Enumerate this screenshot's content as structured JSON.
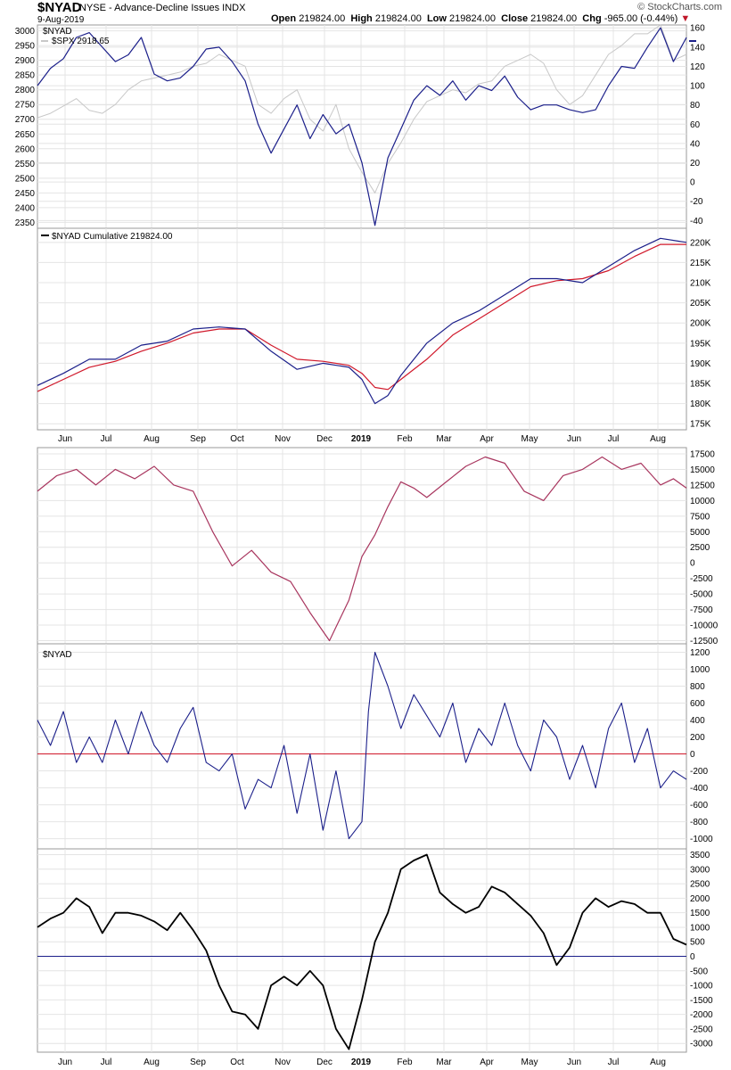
{
  "header": {
    "symbol": "$NYAD",
    "subtitle": "NYSE - Advance-Decline Issues  INDX",
    "date": "9-Aug-2019",
    "open_label": "Open",
    "open": "219824.00",
    "high_label": "High",
    "high": "219824.00",
    "low_label": "Low",
    "low": "219824.00",
    "close_label": "Close",
    "close": "219824.00",
    "chg_label": "Chg",
    "chg": "-965.00 (-0.44%)",
    "brand": "© StockCharts.com"
  },
  "colors": {
    "navy": "#1b1f8a",
    "gray": "#c8c8c8",
    "red": "#d0182a",
    "maroon": "#a8355e",
    "black": "#000000",
    "grid": "#e4e4e4"
  },
  "x_axis_labels": [
    "Jun",
    "Jul",
    "Aug",
    "Sep",
    "Oct",
    "Nov",
    "Dec",
    "2019",
    "Feb",
    "Mar",
    "Apr",
    "May",
    "Jun",
    "Jul",
    "Aug"
  ],
  "chart_data": [
    {
      "type": "line",
      "panel": "1",
      "legend": [
        "$NYAD",
        "$SPX 2918.65"
      ],
      "y_left_ticks": [
        3000,
        2950,
        2900,
        2850,
        2800,
        2750,
        2700,
        2650,
        2600,
        2550,
        2500,
        2450,
        2400,
        2350
      ],
      "y_right_ticks": [
        160,
        140,
        120,
        100,
        80,
        60,
        40,
        20,
        0,
        -20,
        -40
      ],
      "y_left_range": [
        2330,
        3020
      ],
      "y_right_range": [
        -48,
        163
      ],
      "series": [
        {
          "name": "$NYAD",
          "axis": "right",
          "x": [
            0,
            0.02,
            0.04,
            0.06,
            0.08,
            0.1,
            0.12,
            0.14,
            0.16,
            0.18,
            0.2,
            0.22,
            0.24,
            0.26,
            0.28,
            0.3,
            0.32,
            0.34,
            0.36,
            0.38,
            0.4,
            0.42,
            0.44,
            0.46,
            0.48,
            0.5,
            0.52,
            0.54,
            0.56,
            0.58,
            0.6,
            0.62,
            0.64,
            0.66,
            0.68,
            0.7,
            0.72,
            0.74,
            0.76,
            0.78,
            0.8,
            0.82,
            0.84,
            0.86,
            0.88,
            0.9,
            0.92,
            0.94,
            0.96,
            0.98,
            1
          ],
          "values": [
            100,
            118,
            128,
            150,
            155,
            140,
            125,
            132,
            150,
            112,
            105,
            108,
            120,
            138,
            140,
            125,
            105,
            60,
            30,
            55,
            80,
            45,
            70,
            50,
            60,
            20,
            -45,
            25,
            55,
            85,
            100,
            90,
            105,
            85,
            100,
            95,
            110,
            88,
            75,
            80,
            80,
            75,
            72,
            75,
            100,
            120,
            118,
            140,
            160,
            125,
            150
          ]
        },
        {
          "name": "$SPX",
          "axis": "left",
          "x": [
            0,
            0.02,
            0.04,
            0.06,
            0.08,
            0.1,
            0.12,
            0.14,
            0.16,
            0.18,
            0.2,
            0.22,
            0.24,
            0.26,
            0.28,
            0.3,
            0.32,
            0.34,
            0.36,
            0.38,
            0.4,
            0.42,
            0.44,
            0.46,
            0.48,
            0.5,
            0.52,
            0.54,
            0.56,
            0.58,
            0.6,
            0.62,
            0.64,
            0.66,
            0.68,
            0.7,
            0.72,
            0.74,
            0.76,
            0.78,
            0.8,
            0.82,
            0.84,
            0.86,
            0.88,
            0.9,
            0.92,
            0.94,
            0.96,
            0.98,
            1
          ],
          "values": [
            2705,
            2720,
            2745,
            2770,
            2730,
            2720,
            2750,
            2800,
            2830,
            2840,
            2850,
            2860,
            2880,
            2890,
            2920,
            2900,
            2880,
            2750,
            2720,
            2770,
            2800,
            2700,
            2660,
            2750,
            2600,
            2520,
            2450,
            2550,
            2620,
            2700,
            2760,
            2780,
            2800,
            2790,
            2820,
            2830,
            2880,
            2900,
            2920,
            2890,
            2800,
            2750,
            2780,
            2850,
            2920,
            2950,
            2990,
            2990,
            3020,
            2900,
            2920
          ]
        }
      ]
    },
    {
      "type": "line",
      "panel": "2",
      "legend": [
        "$NYAD Cumulative 219824.00"
      ],
      "y_right_ticks": [
        "220K",
        "215K",
        "210K",
        "205K",
        "200K",
        "195K",
        "190K",
        "185K",
        "180K",
        "175K"
      ],
      "y_range_k": [
        173.5,
        223.5
      ],
      "series": [
        {
          "name": "$NYAD Cumulative",
          "x": [
            0,
            0.04,
            0.08,
            0.12,
            0.16,
            0.2,
            0.24,
            0.28,
            0.32,
            0.36,
            0.4,
            0.44,
            0.48,
            0.5,
            0.52,
            0.54,
            0.56,
            0.6,
            0.64,
            0.68,
            0.72,
            0.76,
            0.8,
            0.84,
            0.88,
            0.92,
            0.96,
            1
          ],
          "values_k": [
            184.5,
            187.5,
            191,
            191,
            194.5,
            195.5,
            198.5,
            199,
            198.5,
            193,
            188.5,
            190,
            189,
            186,
            180,
            182,
            187,
            195,
            200,
            203,
            207,
            211,
            211,
            210,
            214,
            218,
            221,
            220
          ]
        },
        {
          "name": "Moving average",
          "x": [
            0,
            0.04,
            0.08,
            0.12,
            0.16,
            0.2,
            0.24,
            0.28,
            0.32,
            0.36,
            0.4,
            0.44,
            0.48,
            0.5,
            0.52,
            0.54,
            0.56,
            0.6,
            0.64,
            0.68,
            0.72,
            0.76,
            0.8,
            0.84,
            0.88,
            0.92,
            0.96,
            1
          ],
          "values_k": [
            183,
            186,
            189,
            190.5,
            193,
            195,
            197.5,
            198.5,
            198.5,
            194.5,
            191,
            190.5,
            189.5,
            187.5,
            184,
            183.5,
            186,
            191,
            197,
            201,
            205,
            209,
            210.5,
            211,
            213,
            216.5,
            219.5,
            219.5
          ]
        }
      ]
    },
    {
      "type": "line",
      "panel": "3",
      "y_right_ticks": [
        17500,
        15000,
        12500,
        10000,
        7500,
        5000,
        2500,
        0,
        -2500,
        -5000,
        -7500,
        -10000,
        -12500
      ],
      "y_range": [
        -13000,
        18500
      ],
      "series": [
        {
          "name": "Oscillator",
          "x": [
            0,
            0.03,
            0.06,
            0.09,
            0.12,
            0.15,
            0.18,
            0.21,
            0.24,
            0.27,
            0.3,
            0.33,
            0.36,
            0.39,
            0.42,
            0.45,
            0.48,
            0.5,
            0.52,
            0.54,
            0.56,
            0.58,
            0.6,
            0.63,
            0.66,
            0.69,
            0.72,
            0.75,
            0.78,
            0.81,
            0.84,
            0.87,
            0.9,
            0.93,
            0.96,
            0.98,
            1
          ],
          "values": [
            11500,
            14000,
            15000,
            12500,
            15000,
            13500,
            15500,
            12500,
            11500,
            5000,
            -500,
            2000,
            -1500,
            -3000,
            -8000,
            -12500,
            -6000,
            1000,
            4500,
            9000,
            13000,
            12000,
            10500,
            13000,
            15500,
            17000,
            16000,
            11500,
            10000,
            14000,
            15000,
            17000,
            15000,
            16000,
            12500,
            13500,
            12000
          ]
        }
      ]
    },
    {
      "type": "line",
      "panel": "4",
      "legend": [
        "$NYAD"
      ],
      "y_right_ticks": [
        1200,
        1000,
        800,
        600,
        400,
        200,
        0,
        -200,
        -400,
        -600,
        -800,
        -1000
      ],
      "y_range": [
        -1120,
        1300
      ],
      "zero_line": 0,
      "series": [
        {
          "name": "$NYAD",
          "x": [
            0,
            0.02,
            0.04,
            0.06,
            0.08,
            0.1,
            0.12,
            0.14,
            0.16,
            0.18,
            0.2,
            0.22,
            0.24,
            0.26,
            0.28,
            0.3,
            0.32,
            0.34,
            0.36,
            0.38,
            0.4,
            0.42,
            0.44,
            0.46,
            0.48,
            0.5,
            0.51,
            0.52,
            0.54,
            0.56,
            0.58,
            0.6,
            0.62,
            0.64,
            0.66,
            0.68,
            0.7,
            0.72,
            0.74,
            0.76,
            0.78,
            0.8,
            0.82,
            0.84,
            0.86,
            0.88,
            0.9,
            0.92,
            0.94,
            0.96,
            0.98,
            1
          ],
          "values": [
            400,
            100,
            500,
            -100,
            200,
            -100,
            400,
            0,
            500,
            100,
            -100,
            300,
            550,
            -100,
            -200,
            0,
            -650,
            -300,
            -400,
            100,
            -700,
            0,
            -900,
            -200,
            -1000,
            -800,
            500,
            1200,
            800,
            300,
            700,
            450,
            200,
            600,
            -100,
            300,
            100,
            600,
            100,
            -200,
            400,
            200,
            -300,
            100,
            -400,
            300,
            600,
            -100,
            300,
            -400,
            -200,
            -300
          ]
        }
      ]
    },
    {
      "type": "line",
      "panel": "5",
      "y_right_ticks": [
        3500,
        3000,
        2500,
        2000,
        1500,
        1000,
        500,
        0,
        -500,
        -1000,
        -1500,
        -2000,
        -2500,
        -3000
      ],
      "y_range": [
        -3300,
        3700
      ],
      "zero_line": 0,
      "series": [
        {
          "name": "Oscillator",
          "x": [
            0,
            0.02,
            0.04,
            0.06,
            0.08,
            0.1,
            0.12,
            0.14,
            0.16,
            0.18,
            0.2,
            0.22,
            0.24,
            0.26,
            0.28,
            0.3,
            0.32,
            0.34,
            0.36,
            0.38,
            0.4,
            0.42,
            0.44,
            0.46,
            0.48,
            0.5,
            0.52,
            0.54,
            0.56,
            0.58,
            0.6,
            0.62,
            0.64,
            0.66,
            0.68,
            0.7,
            0.72,
            0.74,
            0.76,
            0.78,
            0.8,
            0.82,
            0.84,
            0.86,
            0.88,
            0.9,
            0.92,
            0.94,
            0.96,
            0.98,
            1
          ],
          "values": [
            1000,
            1300,
            1500,
            2000,
            1700,
            800,
            1500,
            1500,
            1400,
            1200,
            900,
            1500,
            900,
            200,
            -1000,
            -1900,
            -2000,
            -2500,
            -1000,
            -700,
            -1000,
            -500,
            -1000,
            -2500,
            -3200,
            -1500,
            500,
            1500,
            3000,
            3300,
            3500,
            2200,
            1800,
            1500,
            1700,
            2400,
            2200,
            1800,
            1400,
            800,
            -300,
            300,
            1500,
            2000,
            1700,
            1900,
            1800,
            1500,
            1500,
            600,
            400
          ]
        }
      ]
    }
  ]
}
